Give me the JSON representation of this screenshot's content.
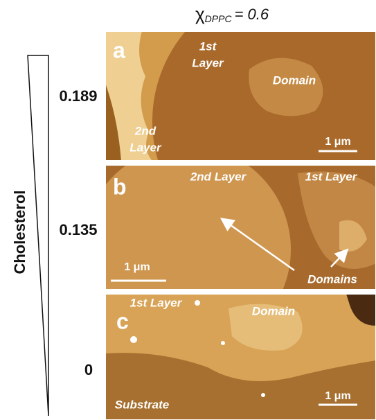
{
  "header": {
    "symbol": "χ",
    "subscript": "DPPC",
    "value_text": "= 0.6"
  },
  "axis_label": "Cholesterol",
  "panels": [
    {
      "letter": "a",
      "level": "0.189",
      "scale_bar": "1 μm",
      "labels": [
        {
          "lines": [
            "1st",
            "Layer"
          ]
        },
        {
          "lines": [
            "Domain"
          ]
        },
        {
          "lines": [
            "2nd",
            "Layer"
          ]
        }
      ]
    },
    {
      "letter": "b",
      "level": "0.135",
      "scale_bar": "1 μm",
      "labels": [
        {
          "lines": [
            "2nd Layer"
          ]
        },
        {
          "lines": [
            "1st Layer"
          ]
        },
        {
          "lines": [
            "Domains"
          ]
        }
      ]
    },
    {
      "letter": "c",
      "level": "0",
      "scale_bar": "1 μm",
      "labels": [
        {
          "lines": [
            "1st Layer"
          ]
        },
        {
          "lines": [
            "Domain"
          ]
        },
        {
          "lines": [
            "Substrate"
          ]
        }
      ]
    }
  ]
}
